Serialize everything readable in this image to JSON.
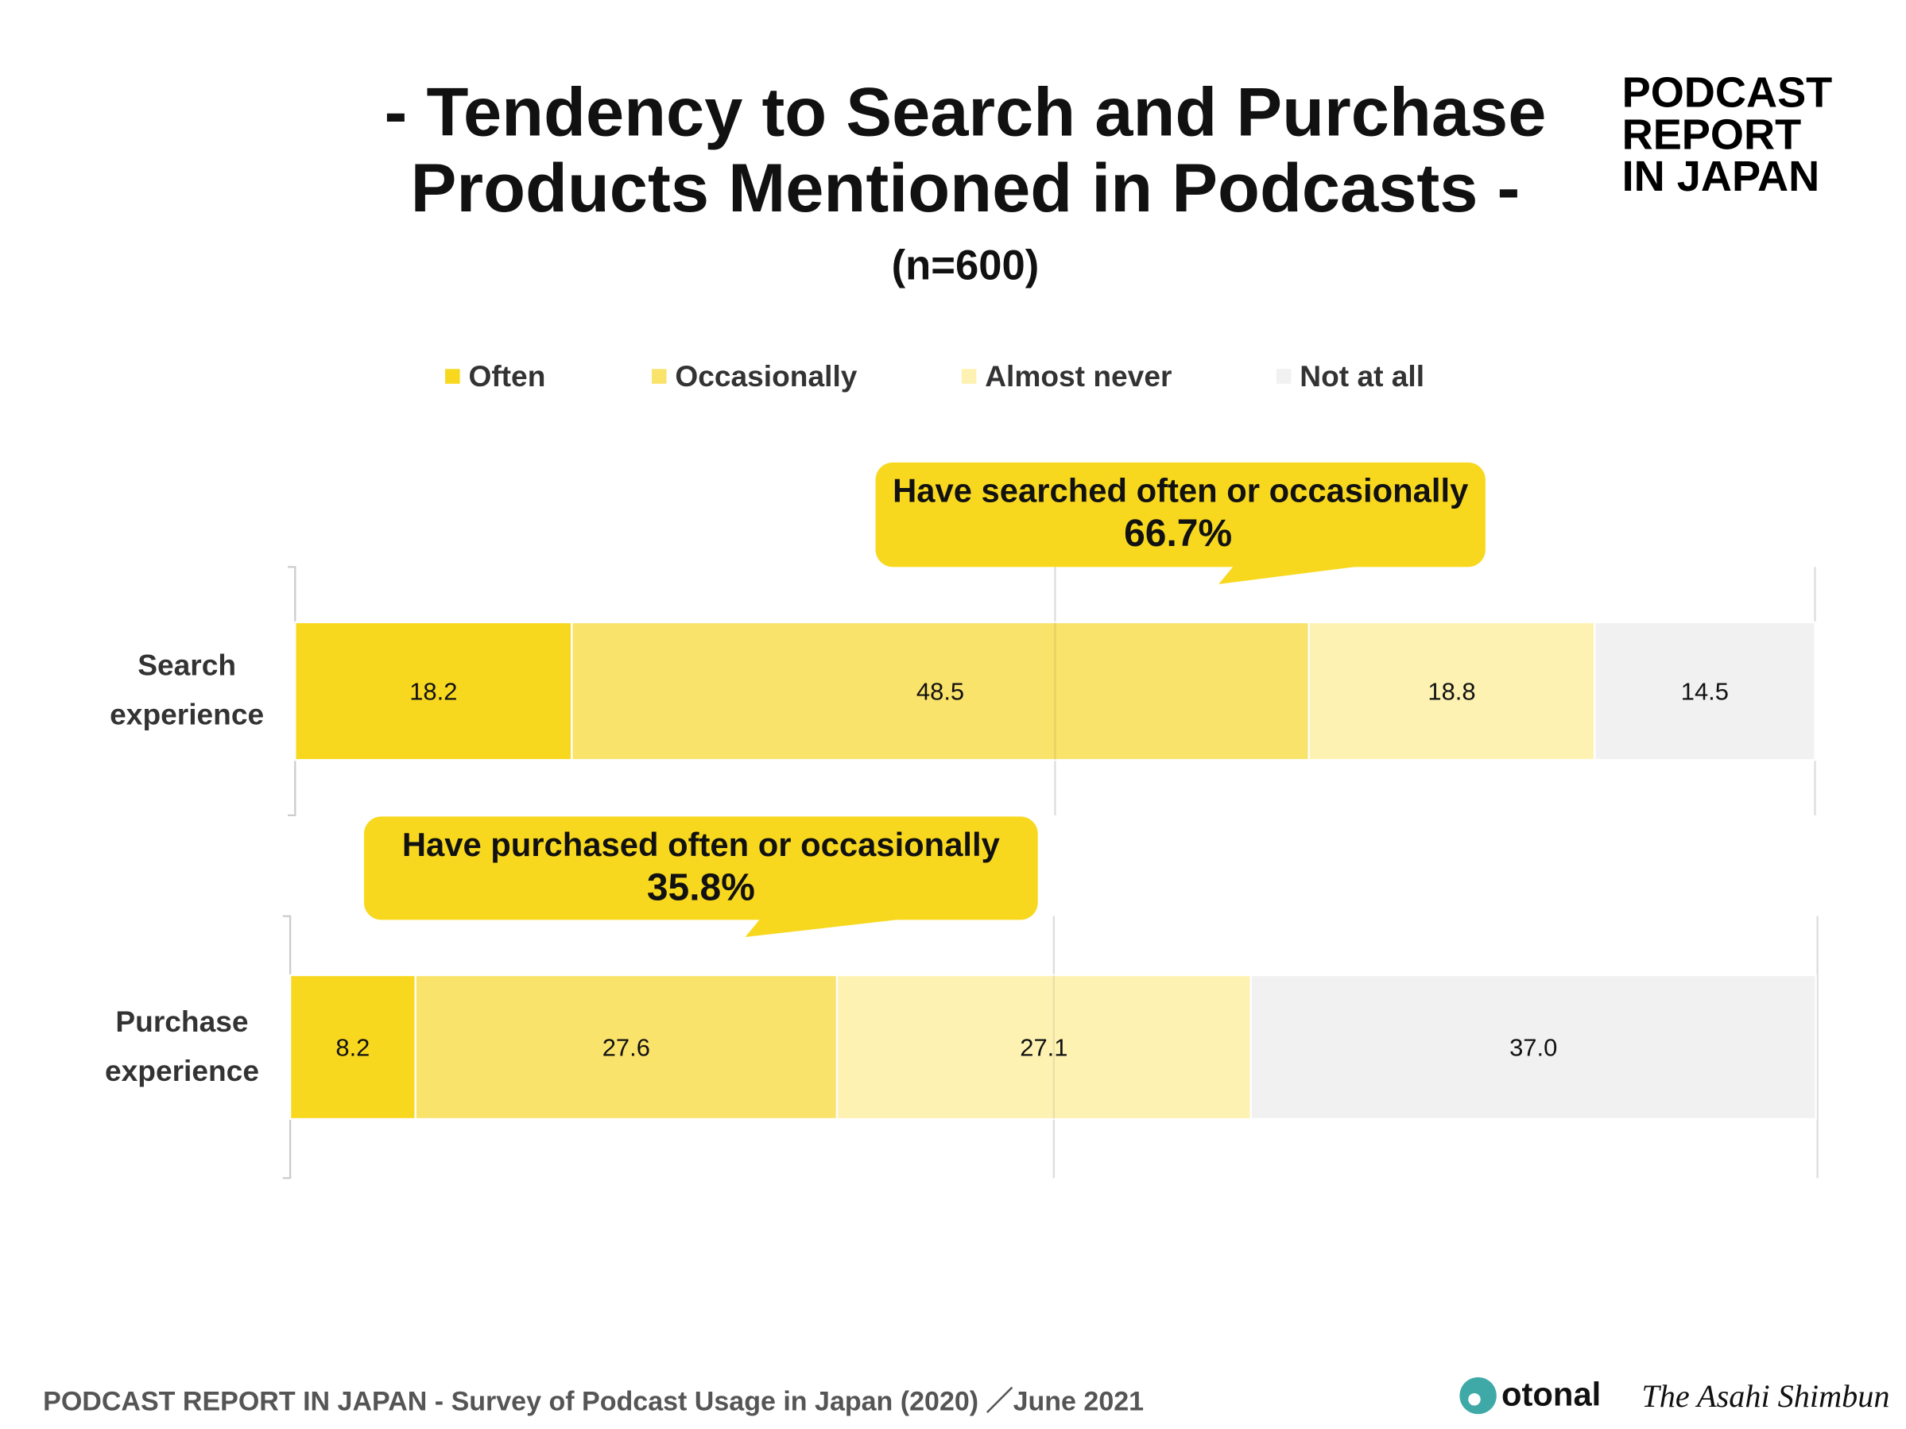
{
  "title": {
    "line1": "- Tendency to Search and Purchase",
    "line2": "Products Mentioned in Podcasts -",
    "sample": "(n=600)"
  },
  "brand_logo": {
    "line1": "PODCAST",
    "line2": "REPORT",
    "line3": "IN JAPAN"
  },
  "chart_data": {
    "type": "bar",
    "orientation": "horizontal",
    "stacked": true,
    "xlim": [
      0,
      100
    ],
    "grid": true,
    "legend_position": "top",
    "categories": [
      "Search experience",
      "Purchase experience"
    ],
    "category_lines": [
      [
        "Search",
        "experience"
      ],
      [
        "Purchase",
        "experience"
      ]
    ],
    "series": [
      {
        "name": "Often",
        "color": "#f8d81f",
        "values": [
          18.2,
          8.2
        ]
      },
      {
        "name": "Occasionally",
        "color": "#fae36b",
        "values": [
          48.5,
          27.6
        ]
      },
      {
        "name": "Almost never",
        "color": "#fdf2b2",
        "values": [
          18.8,
          27.1
        ]
      },
      {
        "name": "Not at all",
        "color": "#f1f1f1",
        "values": [
          14.5,
          37.0
        ]
      }
    ],
    "value_labels": [
      [
        "18.2",
        "48.5",
        "18.8",
        "14.5"
      ],
      [
        "8.2",
        "27.6",
        "27.1",
        "37.0"
      ]
    ],
    "annotations": [
      {
        "text": "Have searched often or occasionally",
        "value": "66.7%"
      },
      {
        "text": "Have purchased often or occasionally",
        "value": "35.8%"
      }
    ],
    "callout_color": "#f8d81f"
  },
  "footer": {
    "source": "PODCAST REPORT IN JAPAN - Survey of Podcast Usage in Japan (2020) ／June 2021",
    "logo1": "otonal",
    "logo2": "The Asahi Shimbun",
    "logo1_color": "#3fa9a8"
  }
}
